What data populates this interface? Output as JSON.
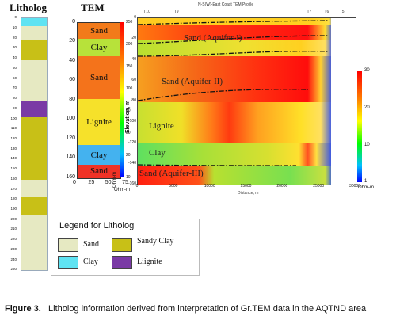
{
  "litholog": {
    "title": "Litholog",
    "depth_ticks": [
      "0",
      "10",
      "20",
      "30",
      "40",
      "50",
      "60",
      "70",
      "80",
      "90",
      "100",
      "110",
      "120",
      "130",
      "140",
      "150",
      "160",
      "170",
      "180",
      "190",
      "200",
      "210",
      "220",
      "230",
      "240",
      "250"
    ],
    "layers": [
      {
        "from": 0,
        "to": 8,
        "type": "Clay",
        "color": "#5fe3f2"
      },
      {
        "from": 8,
        "to": 22,
        "type": "Sand",
        "color": "#e6e9c2"
      },
      {
        "from": 22,
        "to": 42,
        "type": "Sandy Clay",
        "color": "#c8c017"
      },
      {
        "from": 42,
        "to": 82,
        "type": "Sand",
        "color": "#e6e9c2"
      },
      {
        "from": 82,
        "to": 98,
        "type": "Lignite",
        "color": "#7a3aa5"
      },
      {
        "from": 98,
        "to": 160,
        "type": "Sandy Clay",
        "color": "#c8c017"
      },
      {
        "from": 160,
        "to": 178,
        "type": "Sand",
        "color": "#e6e9c2"
      },
      {
        "from": 178,
        "to": 196,
        "type": "Sandy Clay",
        "color": "#c8c017"
      },
      {
        "from": 196,
        "to": 250,
        "type": "Sand",
        "color": "#e6e9c2"
      }
    ]
  },
  "tem": {
    "title": "TEM",
    "y_ticks": [
      "0",
      "20",
      "40",
      "60",
      "80",
      "100",
      "120",
      "140",
      "160"
    ],
    "x_ticks": [
      "0",
      "25",
      "50",
      "75"
    ],
    "x_unit": "Ohm-m",
    "layers": [
      {
        "label": "Sand",
        "from": 0,
        "to": 16,
        "color": "#f27a1a"
      },
      {
        "label": "Clay",
        "from": 16,
        "to": 34,
        "color": "#b7e23a"
      },
      {
        "label": "Sand",
        "from": 34,
        "to": 78,
        "color": "#f4731b"
      },
      {
        "label": "Lignite",
        "from": 78,
        "to": 126,
        "color": "#f6e12a"
      },
      {
        "label": "Clay",
        "from": 126,
        "to": 146,
        "color": "#44b2ef"
      },
      {
        "label": "Sand",
        "from": 146,
        "to": 160,
        "color": "#f03226"
      }
    ]
  },
  "profile": {
    "title": "N-S(W)-East Coast TEM Profile",
    "ylabel": "Elevation, m",
    "xlabel": "Distance, m",
    "station_labels": [
      "T10",
      "T9",
      "T7",
      "T6",
      "T5"
    ],
    "y_ticks": [
      "0",
      "-20",
      "-40",
      "-60",
      "-80",
      "-100",
      "-120",
      "-140",
      "-160"
    ],
    "x_ticks": [
      "0",
      "5000",
      "10000",
      "15000",
      "20000",
      "25000",
      "30000"
    ],
    "labels": [
      "Sand (Aquifer-I)",
      "Sand (Aquifer-II)",
      "Lignite",
      "Clay",
      "Sand (Aquifer-III)"
    ],
    "colorbar_ticks": [
      "30",
      "20",
      "10",
      "1"
    ],
    "colorbar_unit": "Ohm-m"
  },
  "colorbar_left": {
    "ticks": [
      "250",
      "200",
      "150",
      "100",
      "50",
      "30",
      "20",
      "10"
    ],
    "unit": "Ohm-m"
  },
  "legend": {
    "title": "Legend for Litholog",
    "items": [
      {
        "label": "Sand",
        "color": "#e6e9c2"
      },
      {
        "label": "Sandy Clay",
        "color": "#c8c017"
      },
      {
        "label": "Clay",
        "color": "#5fe3f2"
      },
      {
        "label": "Liignite",
        "color": "#7a3aa5"
      }
    ]
  },
  "caption": {
    "label": "Figure 3.",
    "text": "Litholog information derived from interpretation of Gr.TEM data in the AQTND area"
  }
}
